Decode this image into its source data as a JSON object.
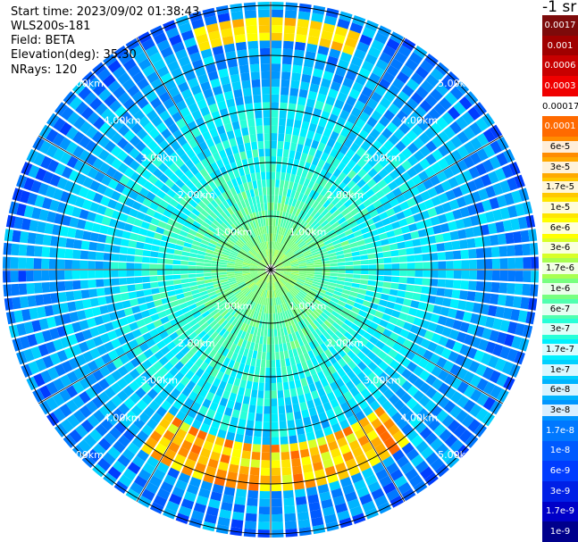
{
  "info": {
    "start_time": "Start time: 2023/09/02 01:38:43",
    "instrument": "WLS200s-181",
    "field": "Field: BETA",
    "elevation": "Elevation(deg): 35.30",
    "nrays": "NRays: 120"
  },
  "map": {
    "range_rings_km": [
      1,
      2,
      3,
      4,
      5
    ],
    "ring_labels": [
      "1.00km",
      "2.00km",
      "3.00km",
      "4.00km",
      "5.00km"
    ],
    "spokes_deg": [
      0,
      30,
      60,
      90,
      120,
      150,
      180,
      210,
      240,
      270,
      300,
      330
    ],
    "n_rays": 120,
    "max_range_km": 5
  },
  "colorbar": {
    "unit": "-1 sr",
    "labels": [
      "0.0017",
      "0.001",
      "0.0006",
      "0.0003",
      "0.00017",
      "0.0001",
      "6e-5",
      "3e-5",
      "1.7e-5",
      "1e-5",
      "6e-6",
      "3e-6",
      "1.7e-6",
      "1e-6",
      "6e-7",
      "3e-7",
      "1.7e-7",
      "1e-7",
      "6e-8",
      "3e-8",
      "1.7e-8",
      "1e-8",
      "6e-9",
      "3e-9",
      "1.7e-9",
      "1e-9"
    ],
    "colors": [
      "#7d0a0a",
      "#a00000",
      "#c80000",
      "#f00000",
      "#ffffff",
      "#ff6a00",
      "#ff8c00",
      "#ffaa00",
      "#ffc800",
      "#ffe600",
      "#ffff00",
      "#d8ff28",
      "#a8ff50",
      "#78ff80",
      "#50ffb0",
      "#28ffd8",
      "#00f0ff",
      "#00d0ff",
      "#00b4ff",
      "#0096ff",
      "#0078ff",
      "#005aff",
      "#003cff",
      "#0020e6",
      "#0000c8",
      "#00008c"
    ],
    "label_colors": [
      "#ffffff",
      "#ffffff",
      "#ffffff",
      "#ffffff",
      "#000000",
      "#ffffff",
      "#000000",
      "#000000",
      "#000000",
      "#000000",
      "#000000",
      "#000000",
      "#000000",
      "#000000",
      "#000000",
      "#000000",
      "#000000",
      "#000000",
      "#000000",
      "#000000",
      "#ffffff",
      "#ffffff",
      "#ffffff",
      "#ffffff",
      "#ffffff",
      "#ffffff"
    ]
  }
}
